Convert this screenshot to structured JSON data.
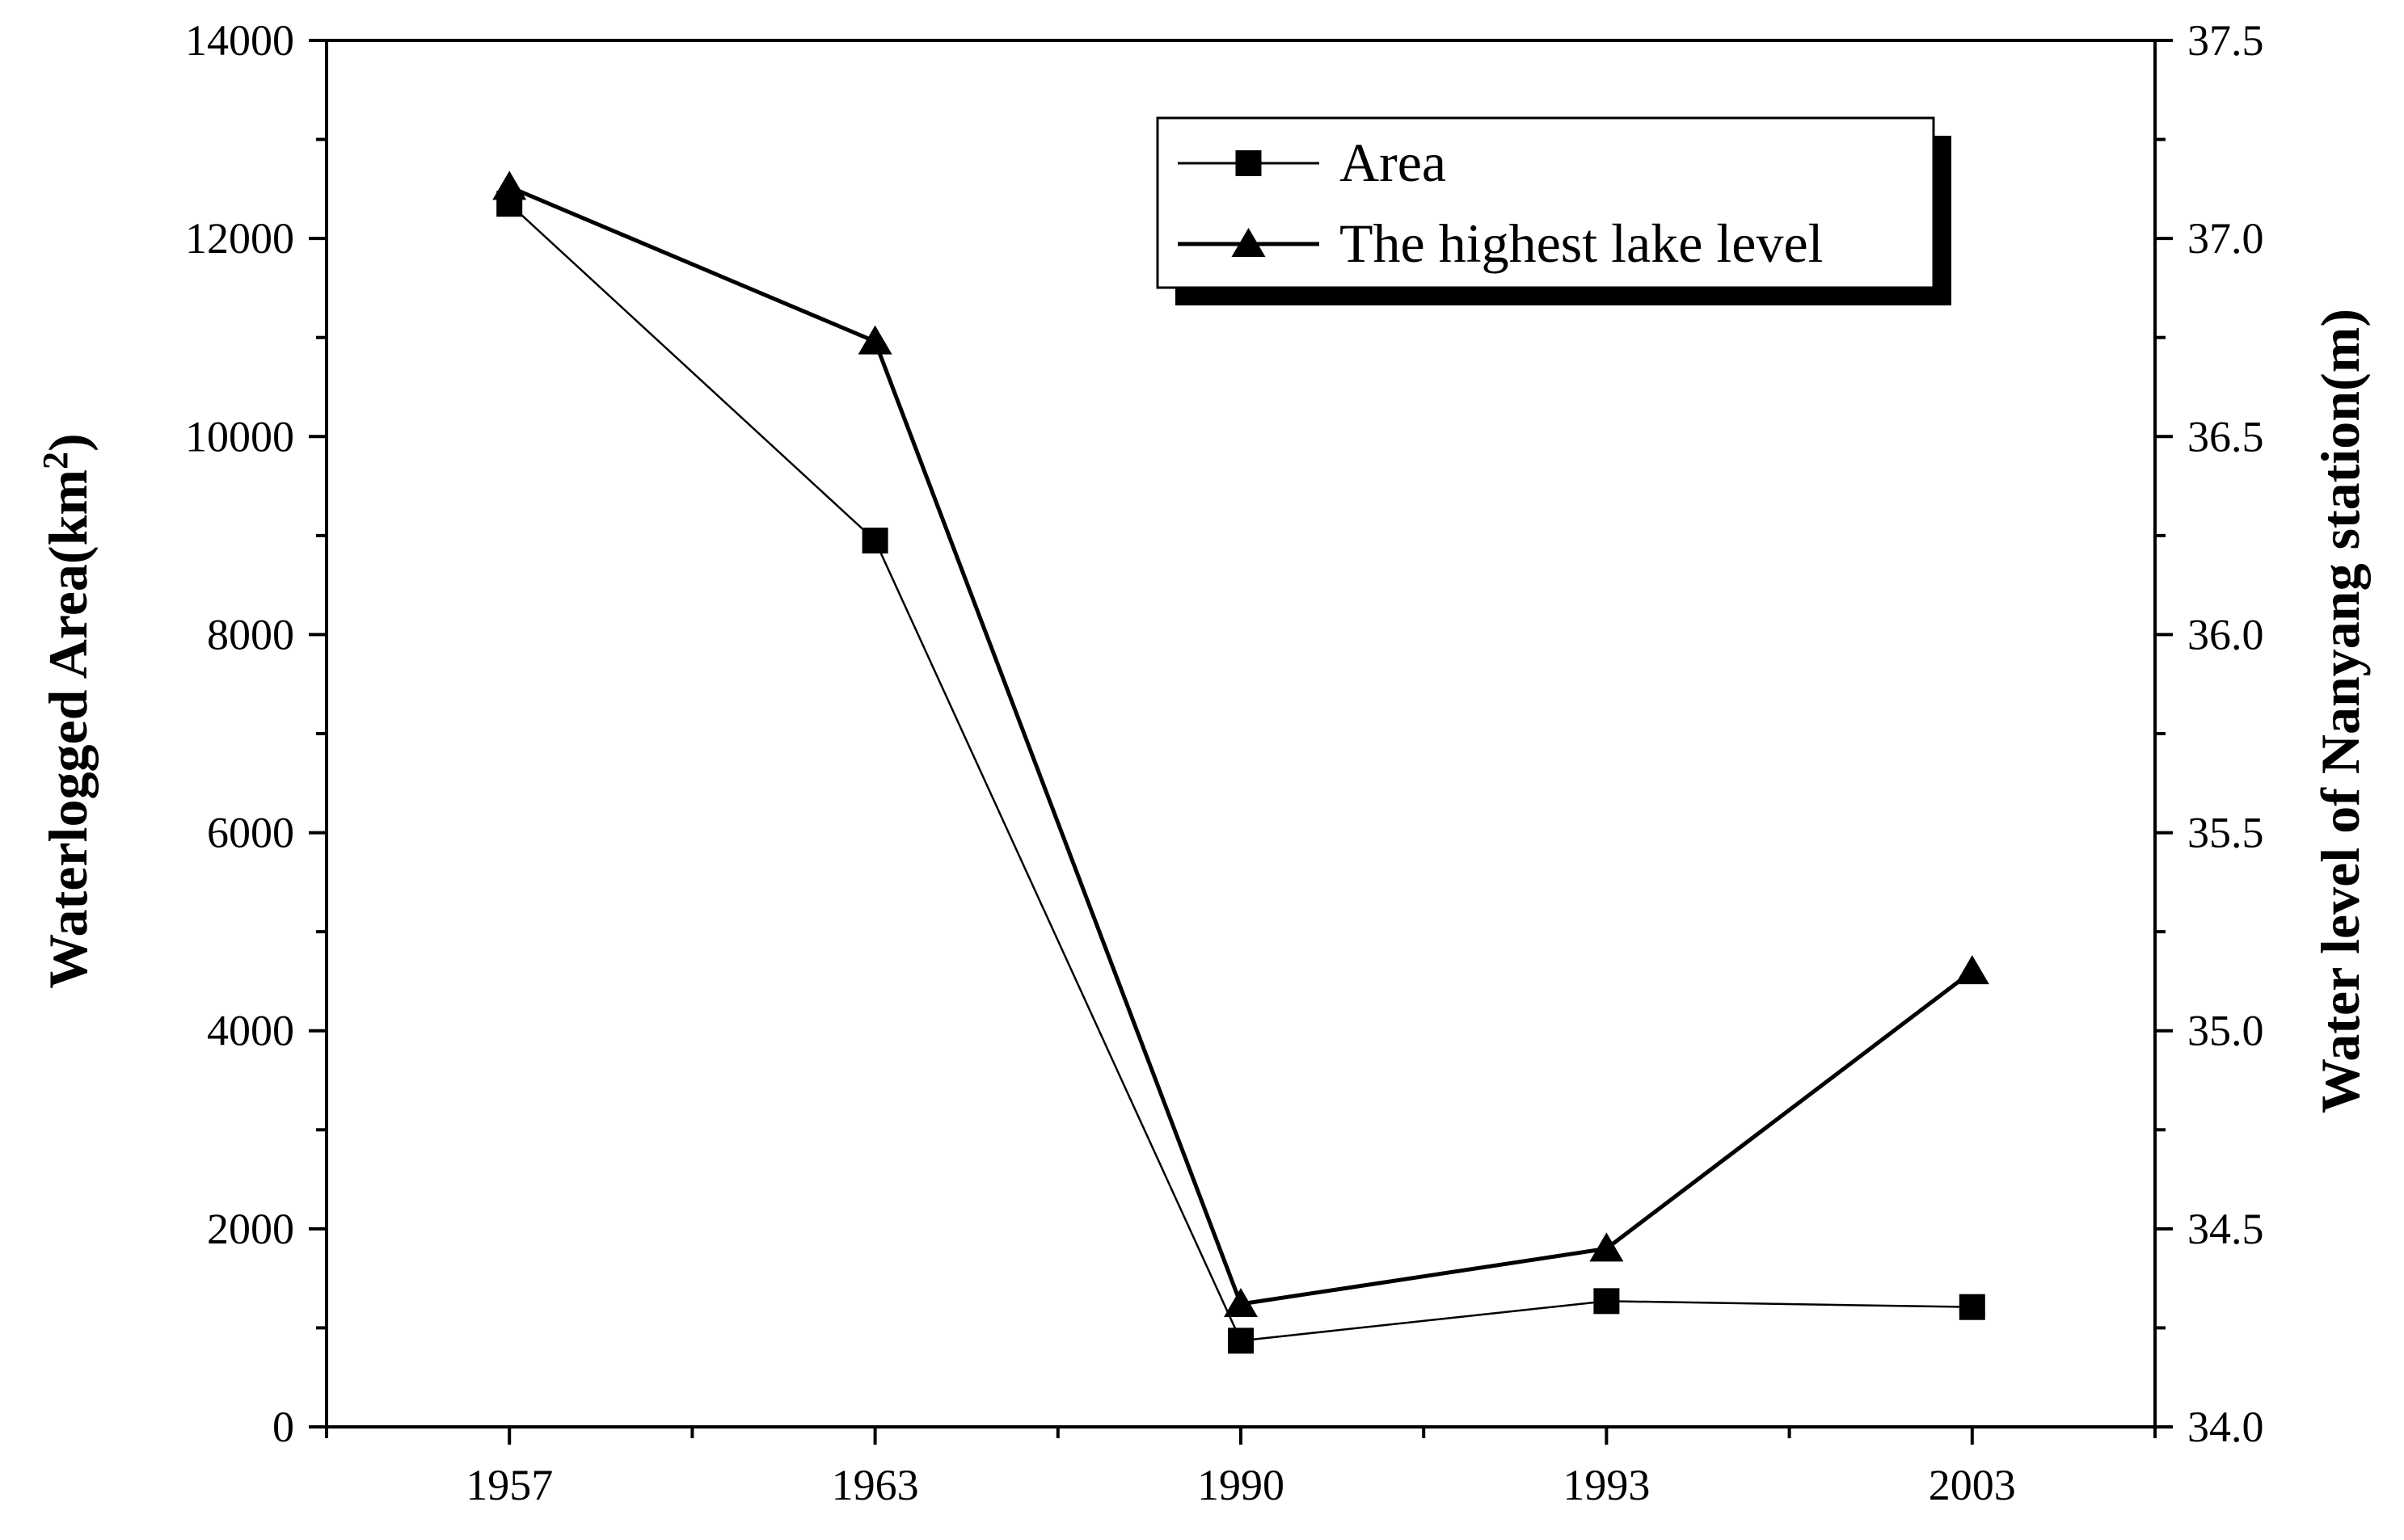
{
  "chart_data": {
    "type": "line",
    "categories": [
      "1957",
      "1963",
      "1990",
      "1993",
      "2003"
    ],
    "y_left": {
      "label_main": "Waterlogged Area(km",
      "label_sup": "2",
      "label_end": ")",
      "lim": [
        0,
        14000
      ],
      "ticks": [
        "0",
        "2000",
        "4000",
        "6000",
        "8000",
        "10000",
        "12000",
        "14000"
      ]
    },
    "y_right": {
      "label": "Water level of Nanyang station(m)",
      "lim": [
        34.0,
        37.5
      ],
      "ticks": [
        "34.0",
        "34.5",
        "35.0",
        "35.5",
        "36.0",
        "36.5",
        "37.0",
        "37.5"
      ]
    },
    "series": [
      {
        "name": "Area",
        "axis": "left",
        "marker": "square",
        "values": [
          12350,
          8950,
          870,
          1270,
          1210
        ]
      },
      {
        "name": "The highest lake level",
        "axis": "right",
        "marker": "triangle",
        "values": [
          37.13,
          36.74,
          34.31,
          34.45,
          35.15
        ]
      }
    ],
    "legend_position": "top-right",
    "grid": false
  }
}
